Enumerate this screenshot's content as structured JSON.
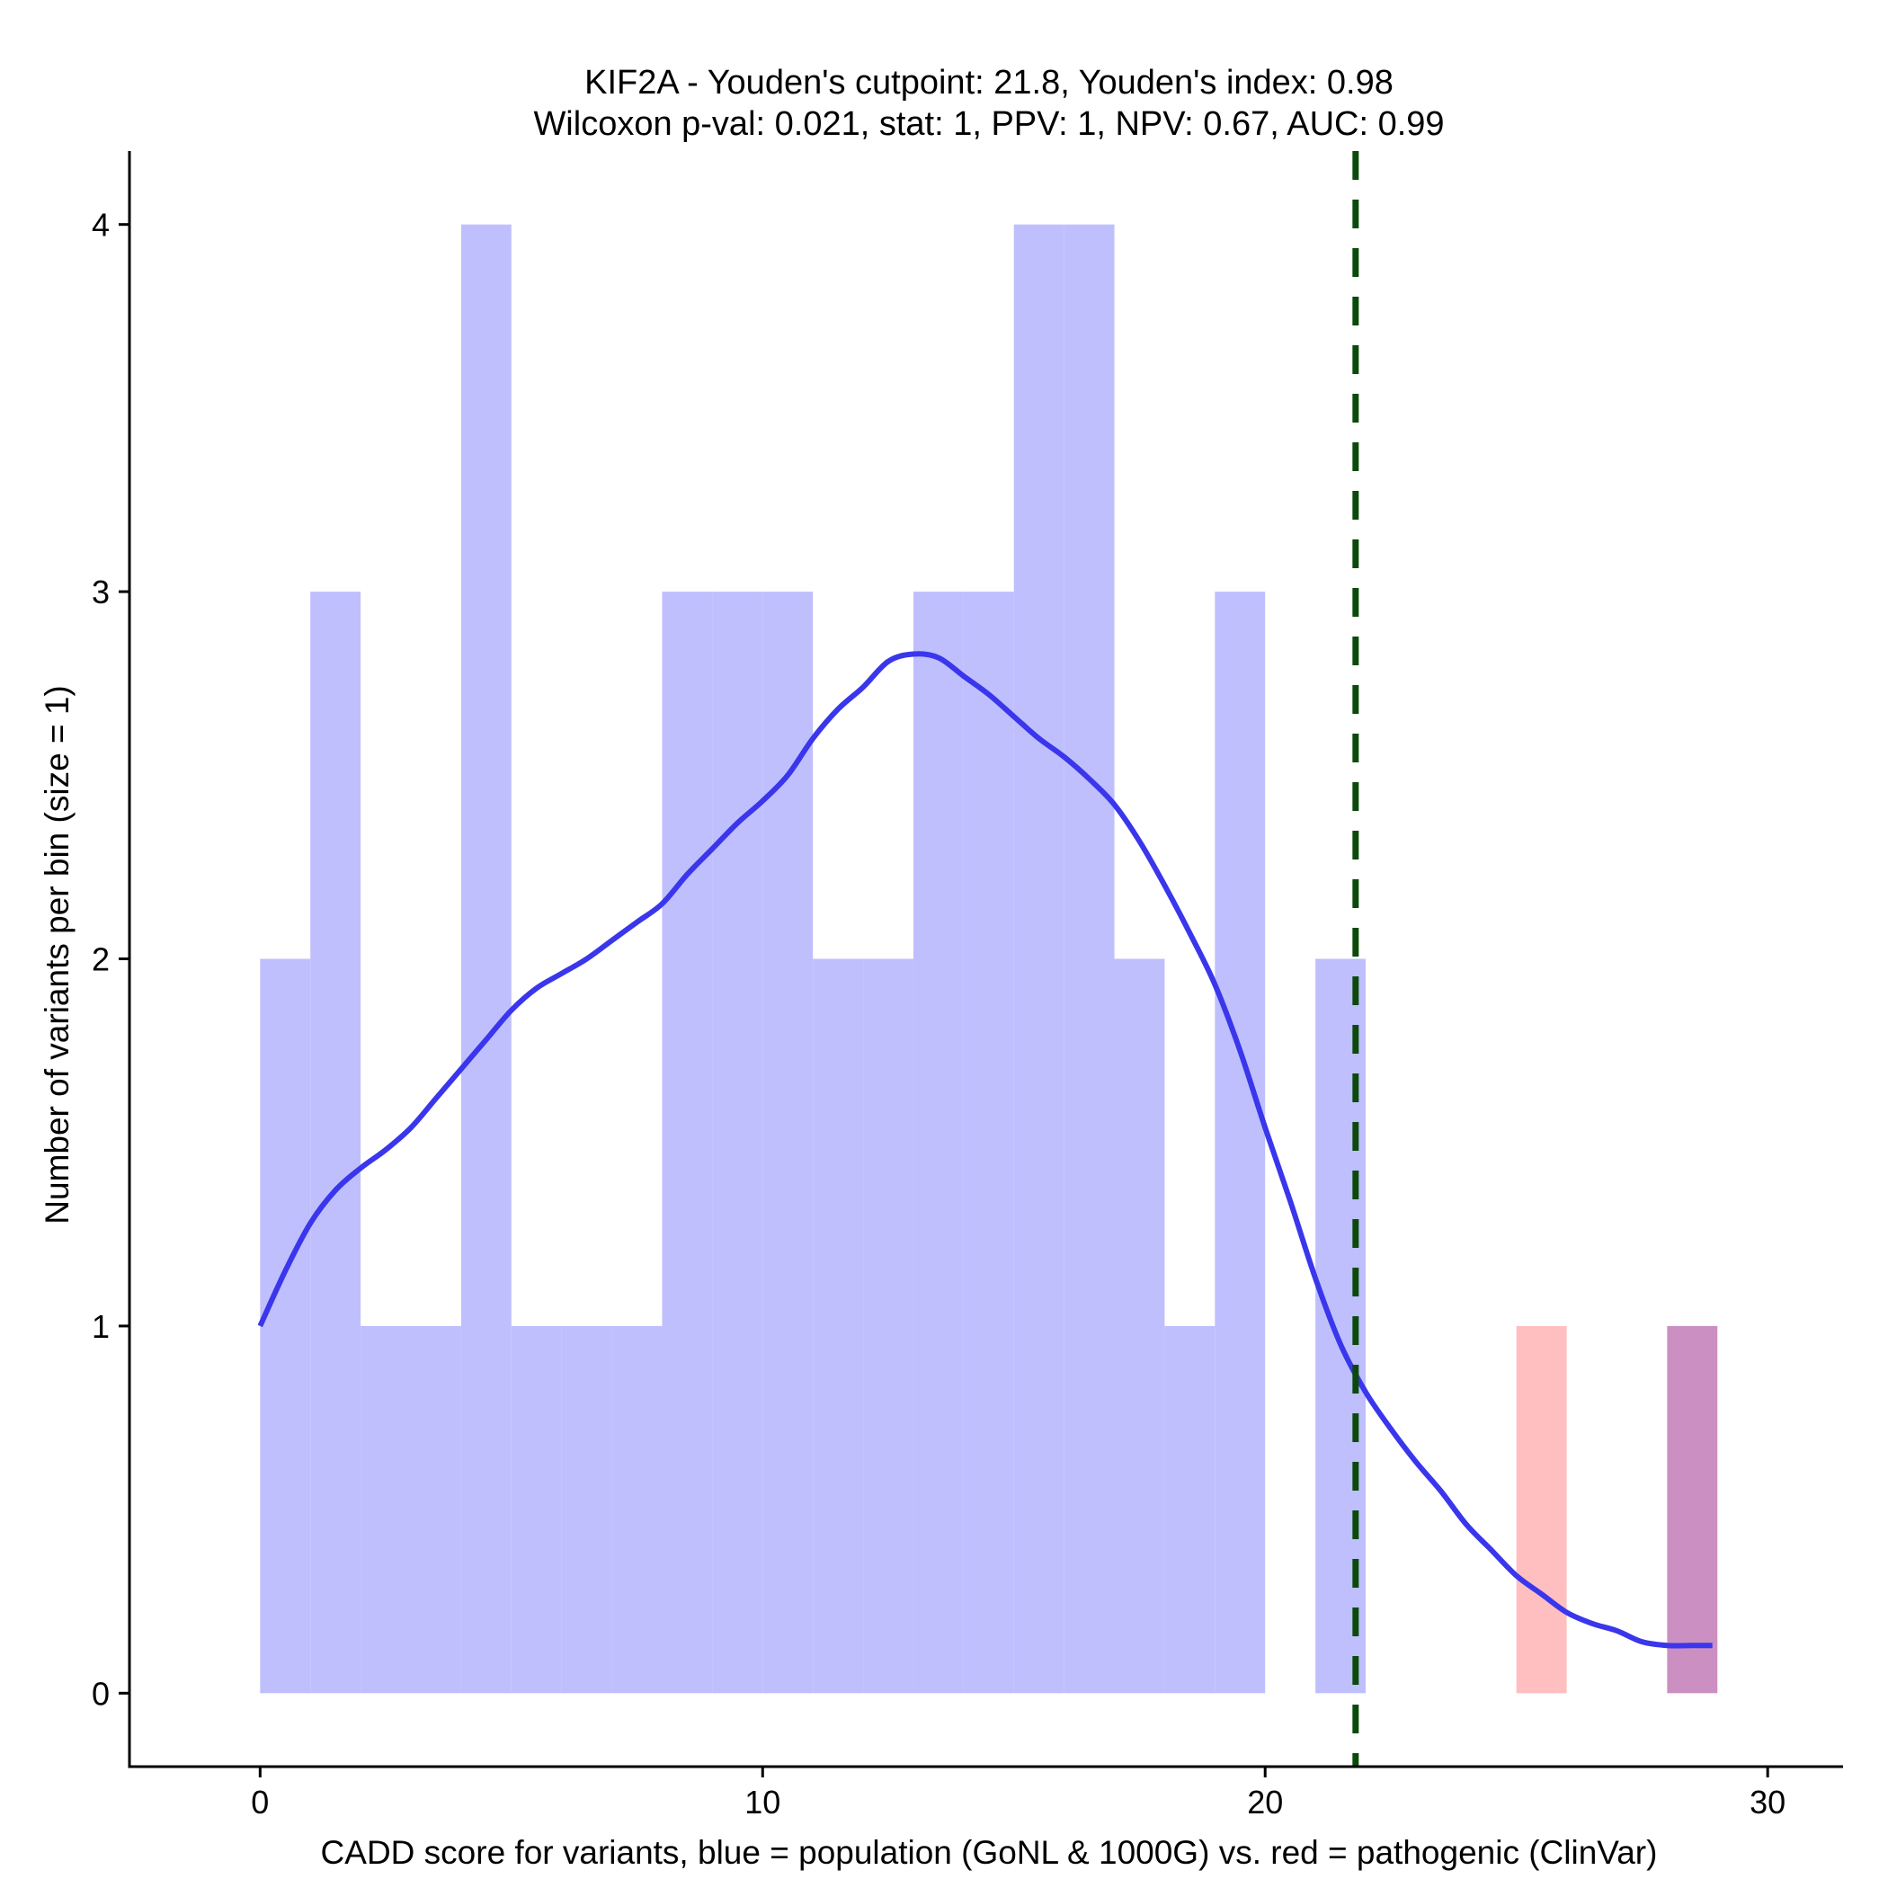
{
  "chart_data": {
    "type": "histogram",
    "title": [
      "KIF2A - Youden's cutpoint: 21.8, Youden's index: 0.98",
      "Wilcoxon p-val: 0.021, stat: 1, PPV: 1, NPV: 0.67, AUC: 0.99"
    ],
    "xlabel": "CADD score for variants, blue = population (GoNL & 1000G) vs. red = pathogenic (ClinVar)",
    "ylabel": "Number of variants per bin (size = 1)",
    "xlim": [
      -2.6,
      31.5
    ],
    "ylim": [
      -0.2,
      4.2
    ],
    "x_ticks": [
      0,
      10,
      20,
      30
    ],
    "y_ticks": [
      0,
      1,
      2,
      3,
      4
    ],
    "bin_width": 1,
    "colors": {
      "population": "#bfbffe",
      "pathogenic": "#ffbfc0",
      "overlap": "#cc8fc2",
      "density": "#3a36ec",
      "cutpoint": "#0b4a0b"
    },
    "series": [
      {
        "name": "population",
        "bins": [
          {
            "x": 0,
            "count": 2
          },
          {
            "x": 1,
            "count": 3
          },
          {
            "x": 2,
            "count": 1
          },
          {
            "x": 3,
            "count": 1
          },
          {
            "x": 4,
            "count": 4
          },
          {
            "x": 5,
            "count": 1
          },
          {
            "x": 6,
            "count": 1
          },
          {
            "x": 7,
            "count": 1
          },
          {
            "x": 8,
            "count": 3
          },
          {
            "x": 9,
            "count": 3
          },
          {
            "x": 10,
            "count": 3
          },
          {
            "x": 11,
            "count": 2
          },
          {
            "x": 12,
            "count": 2
          },
          {
            "x": 13,
            "count": 3
          },
          {
            "x": 14,
            "count": 3
          },
          {
            "x": 15,
            "count": 4
          },
          {
            "x": 16,
            "count": 4
          },
          {
            "x": 17,
            "count": 2
          },
          {
            "x": 18,
            "count": 1
          },
          {
            "x": 19,
            "count": 3
          },
          {
            "x": 21,
            "count": 2
          },
          {
            "x": 28,
            "count": 1
          }
        ]
      },
      {
        "name": "pathogenic",
        "bins": [
          {
            "x": 25,
            "count": 1
          },
          {
            "x": 28,
            "count": 1
          }
        ]
      }
    ],
    "density_curve": {
      "name": "population density",
      "points": [
        [
          0,
          1.0
        ],
        [
          0.5,
          1.15
        ],
        [
          1,
          1.28
        ],
        [
          1.5,
          1.37
        ],
        [
          2,
          1.43
        ],
        [
          2.5,
          1.48
        ],
        [
          3,
          1.54
        ],
        [
          3.5,
          1.62
        ],
        [
          4,
          1.7
        ],
        [
          4.5,
          1.78
        ],
        [
          5,
          1.86
        ],
        [
          5.5,
          1.92
        ],
        [
          6,
          1.96
        ],
        [
          6.5,
          2.0
        ],
        [
          7,
          2.05
        ],
        [
          7.5,
          2.1
        ],
        [
          8,
          2.15
        ],
        [
          8.5,
          2.23
        ],
        [
          9,
          2.3
        ],
        [
          9.5,
          2.37
        ],
        [
          10,
          2.43
        ],
        [
          10.5,
          2.5
        ],
        [
          11,
          2.6
        ],
        [
          11.5,
          2.68
        ],
        [
          12,
          2.74
        ],
        [
          12.5,
          2.81
        ],
        [
          13,
          2.83
        ],
        [
          13.5,
          2.82
        ],
        [
          14,
          2.77
        ],
        [
          14.5,
          2.72
        ],
        [
          15,
          2.66
        ],
        [
          15.5,
          2.6
        ],
        [
          16,
          2.55
        ],
        [
          16.5,
          2.49
        ],
        [
          17,
          2.42
        ],
        [
          17.5,
          2.32
        ],
        [
          18,
          2.2
        ],
        [
          18.5,
          2.07
        ],
        [
          19,
          1.93
        ],
        [
          19.5,
          1.75
        ],
        [
          20,
          1.54
        ],
        [
          20.5,
          1.34
        ],
        [
          21,
          1.13
        ],
        [
          21.5,
          0.95
        ],
        [
          22,
          0.82
        ],
        [
          22.5,
          0.72
        ],
        [
          23,
          0.63
        ],
        [
          23.5,
          0.55
        ],
        [
          24,
          0.46
        ],
        [
          24.5,
          0.39
        ],
        [
          25,
          0.32
        ],
        [
          25.5,
          0.27
        ],
        [
          26,
          0.22
        ],
        [
          26.5,
          0.19
        ],
        [
          27,
          0.17
        ],
        [
          27.5,
          0.14
        ],
        [
          28,
          0.13
        ],
        [
          28.5,
          0.13
        ],
        [
          28.9,
          0.13
        ]
      ]
    },
    "cutpoint": 21.8
  }
}
